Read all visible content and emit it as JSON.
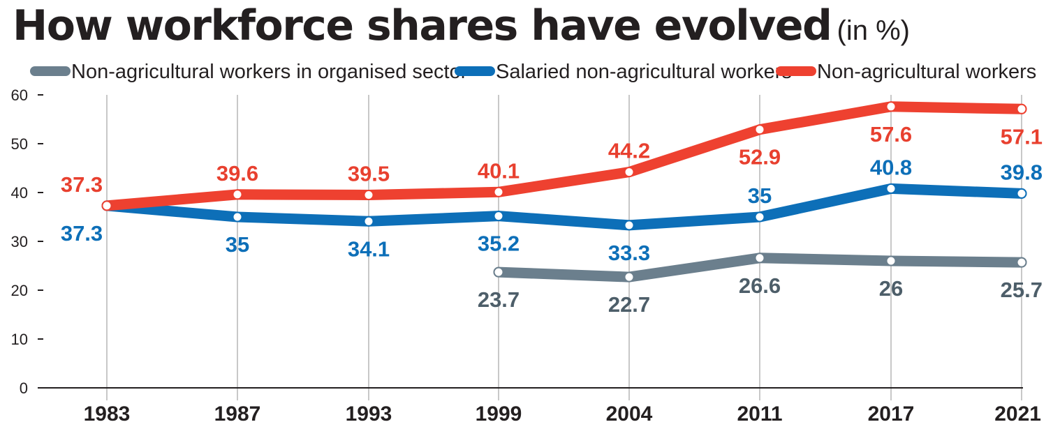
{
  "title": "How workforce shares have evolved",
  "title_unit": "(in %)",
  "chart_data": {
    "type": "line",
    "title": "How workforce shares have evolved",
    "subtitle": "(in %)",
    "categories": [
      "1983",
      "1987",
      "1993",
      "1999",
      "2004",
      "2011",
      "2017",
      "2021"
    ],
    "yticks": [
      "0",
      "10",
      "20",
      "30",
      "40",
      "50",
      "60"
    ],
    "ylim": [
      0,
      60
    ],
    "grid": "vertical lines at each year",
    "legend_position": "top",
    "series": [
      {
        "name": "Non-agricultural workers in organised sector",
        "color": "#6b7f8d",
        "label_color": "#4d5e69",
        "values": [
          null,
          null,
          null,
          23.7,
          22.7,
          26.6,
          26,
          25.7
        ],
        "labels": [
          null,
          null,
          null,
          "23.7",
          "22.7",
          "26.6",
          "26",
          "25.7"
        ],
        "label_pos": [
          null,
          null,
          null,
          "below",
          "below",
          "below",
          "below",
          "below"
        ]
      },
      {
        "name": "Salaried non-agricultural workers",
        "color": "#0d6fb8",
        "label_color": "#0d6fb8",
        "values": [
          37.3,
          35,
          34.1,
          35.2,
          33.3,
          35,
          40.8,
          39.8
        ],
        "labels": [
          "37.3",
          "35",
          "34.1",
          "35.2",
          "33.3",
          "35",
          "40.8",
          "39.8"
        ],
        "label_pos": [
          "below",
          "below",
          "below",
          "below",
          "below",
          "above",
          "above",
          "above"
        ]
      },
      {
        "name": "Non-agricultural workers",
        "color": "#ee4130",
        "label_color": "#e8402f",
        "values": [
          37.3,
          39.6,
          39.5,
          40.1,
          44.2,
          52.9,
          57.6,
          57.1
        ],
        "labels": [
          "37.3",
          "39.6",
          "39.5",
          "40.1",
          "44.2",
          "52.9",
          "57.6",
          "57.1"
        ],
        "label_pos": [
          "above",
          "above",
          "above",
          "above",
          "above",
          "below",
          "below",
          "below"
        ]
      }
    ]
  }
}
